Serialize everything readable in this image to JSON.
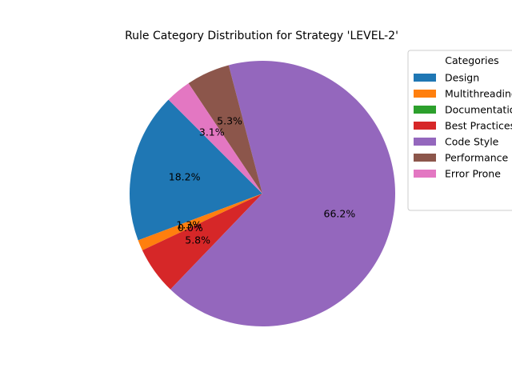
{
  "chart_data": {
    "type": "pie",
    "title": "Rule Category Distribution for Strategy 'LEVEL-2'",
    "legend_title": "Categories",
    "legend_position": "right",
    "start_angle_deg": 135,
    "direction": "counterclockwise",
    "slices": [
      {
        "label": "Design",
        "value": 18.2,
        "pct_label": "18.2%",
        "color": "#1f77b4"
      },
      {
        "label": "Multithreading",
        "value": 1.3,
        "pct_label": "1.3%",
        "color": "#ff7f0e"
      },
      {
        "label": "Documentation",
        "value": 0.0,
        "pct_label": "0.0%",
        "color": "#2ca02c"
      },
      {
        "label": "Best Practices",
        "value": 5.8,
        "pct_label": "5.8%",
        "color": "#d62728"
      },
      {
        "label": "Code Style",
        "value": 66.2,
        "pct_label": "66.2%",
        "color": "#9467bd"
      },
      {
        "label": "Performance",
        "value": 5.3,
        "pct_label": "5.3%",
        "color": "#8c564b"
      },
      {
        "label": "Error Prone",
        "value": 3.1,
        "pct_label": "3.1%",
        "color": "#e377c2"
      }
    ]
  }
}
